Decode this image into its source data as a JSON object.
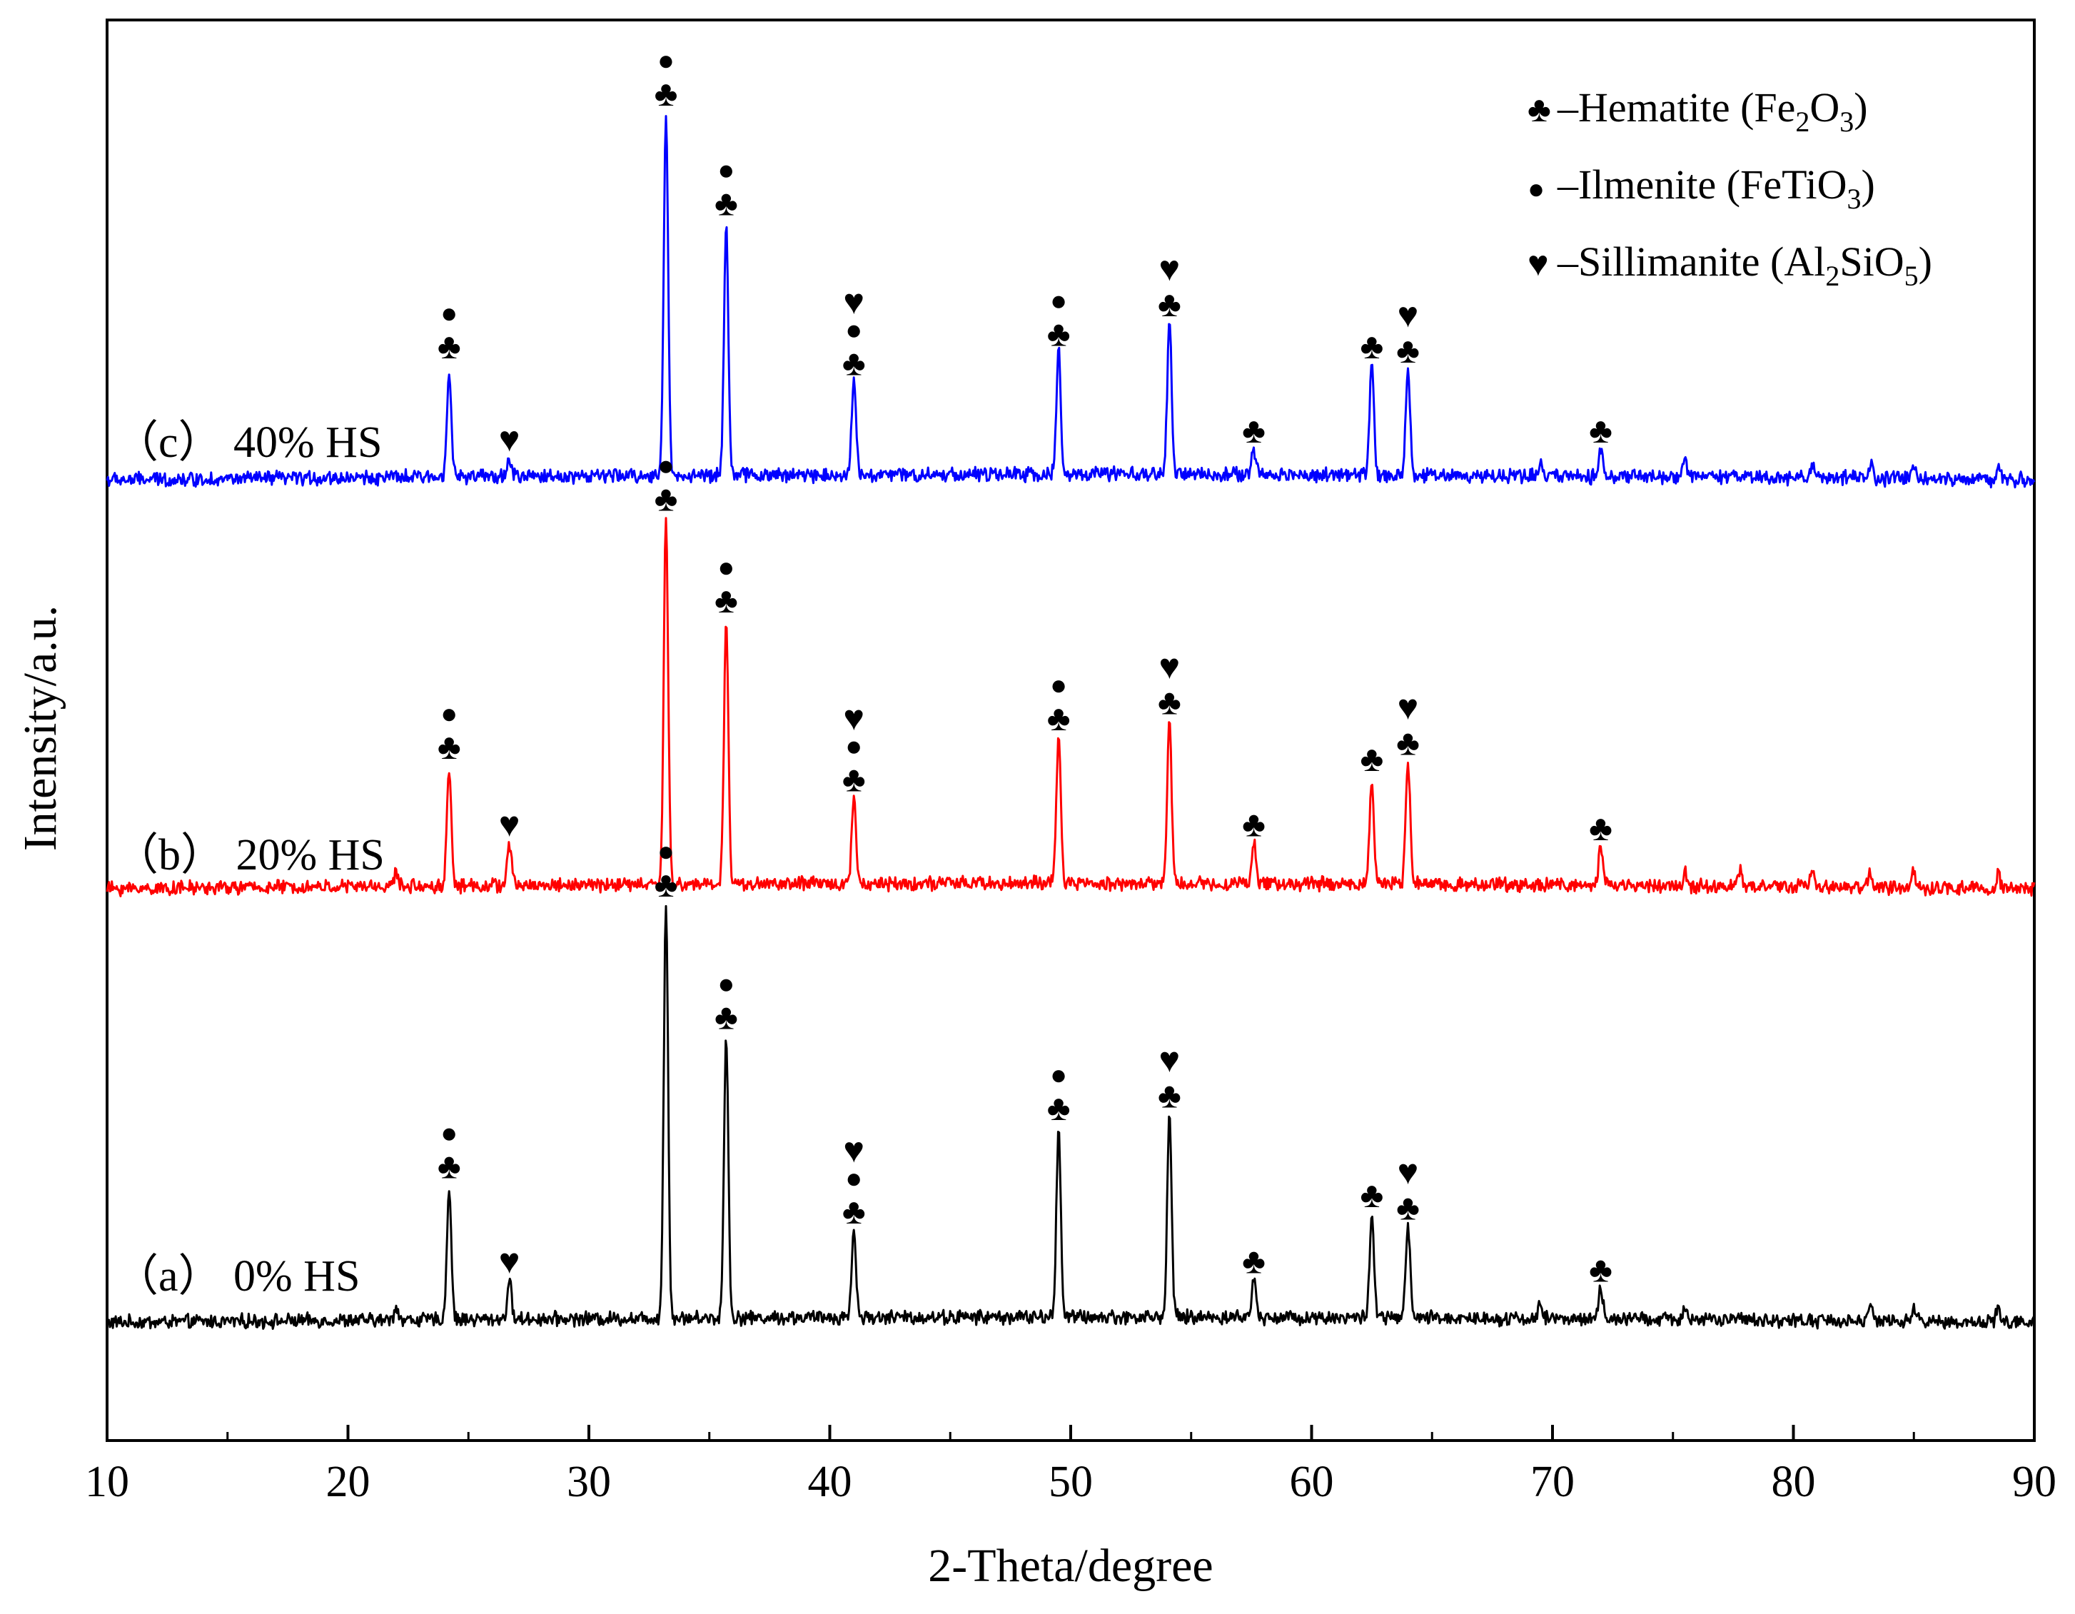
{
  "chart_data": {
    "type": "line",
    "title": "",
    "xlabel": "2-Theta/degree",
    "ylabel": "Intensity/a.u.",
    "xlim": [
      10,
      90
    ],
    "xticks": [
      "10",
      "20",
      "30",
      "40",
      "50",
      "60",
      "70",
      "80",
      "90"
    ],
    "y_ticks_shown": false,
    "legend_position": "top-right",
    "legend": [
      {
        "symbol": "club",
        "symbol_glyph": "♣",
        "text": "–Hematite (Fe",
        "sub1": "2",
        "mid": "O",
        "sub2": "3",
        "tail": ")"
      },
      {
        "symbol": "dot",
        "symbol_glyph": "●",
        "text": "–Ilmenite (FeTiO",
        "sub1": "3",
        "mid": "",
        "sub2": "",
        "tail": ")"
      },
      {
        "symbol": "heart",
        "symbol_glyph": "♥",
        "text": "–Sillimanite (Al",
        "sub1": "2",
        "mid": "SiO",
        "sub2": "5",
        "tail": ")"
      }
    ],
    "series": [
      {
        "name": "(a) 0% HS",
        "label": "（a） 0% HS",
        "color": "#000000",
        "baseline": 0.3,
        "drift": 0.06,
        "peaks": [
          {
            "x": 24.2,
            "h": 3.2,
            "markers": [
              "club",
              "dot"
            ]
          },
          {
            "x": 26.7,
            "h": 0.9,
            "markers": [
              "heart"
            ]
          },
          {
            "x": 33.2,
            "h": 10.0,
            "markers": [
              "club",
              "dot"
            ]
          },
          {
            "x": 35.7,
            "h": 6.8,
            "markers": [
              "club",
              "dot"
            ]
          },
          {
            "x": 41.0,
            "h": 2.1,
            "markers": [
              "club",
              "dot",
              "heart"
            ]
          },
          {
            "x": 49.5,
            "h": 4.6,
            "markers": [
              "club",
              "dot"
            ]
          },
          {
            "x": 54.1,
            "h": 4.9,
            "markers": [
              "club",
              "heart"
            ]
          },
          {
            "x": 57.6,
            "h": 0.9,
            "markers": [
              "club"
            ]
          },
          {
            "x": 62.5,
            "h": 2.5,
            "markers": [
              "club"
            ]
          },
          {
            "x": 64.0,
            "h": 2.2,
            "markers": [
              "club",
              "heart"
            ]
          },
          {
            "x": 72.0,
            "h": 0.7,
            "markers": [
              "club"
            ]
          }
        ],
        "minor_peaks": [
          22.0,
          69.5,
          75.5,
          83.2,
          85.0,
          88.5
        ]
      },
      {
        "name": "(b) 20% HS",
        "label": "（b） 20% HS",
        "color": "#ff0000",
        "baseline": 0.3,
        "drift": 0.06,
        "peaks": [
          {
            "x": 24.2,
            "h": 2.9,
            "markers": [
              "club",
              "dot"
            ]
          },
          {
            "x": 26.7,
            "h": 1.0,
            "markers": [
              "heart"
            ]
          },
          {
            "x": 33.2,
            "h": 9.0,
            "markers": [
              "club",
              "dot"
            ]
          },
          {
            "x": 35.7,
            "h": 6.5,
            "markers": [
              "club",
              "dot"
            ]
          },
          {
            "x": 41.0,
            "h": 2.1,
            "markers": [
              "club",
              "dot",
              "heart"
            ]
          },
          {
            "x": 49.5,
            "h": 3.6,
            "markers": [
              "club",
              "dot"
            ]
          },
          {
            "x": 54.1,
            "h": 4.0,
            "markers": [
              "club",
              "heart"
            ]
          },
          {
            "x": 57.6,
            "h": 1.0,
            "markers": [
              "club"
            ]
          },
          {
            "x": 62.5,
            "h": 2.6,
            "markers": [
              "club"
            ]
          },
          {
            "x": 64.0,
            "h": 3.0,
            "markers": [
              "club",
              "heart"
            ]
          },
          {
            "x": 72.0,
            "h": 0.9,
            "markers": [
              "club"
            ]
          }
        ],
        "minor_peaks": [
          22.0,
          75.5,
          77.8,
          80.8,
          83.2,
          85.0,
          88.5
        ]
      },
      {
        "name": "(c) 40% HS",
        "label": "（c） 40% HS",
        "color": "#0000ff",
        "baseline": 0.3,
        "drift": 0.06,
        "peaks": [
          {
            "x": 24.2,
            "h": 2.6,
            "markers": [
              "club",
              "dot"
            ]
          },
          {
            "x": 26.7,
            "h": 0.4,
            "markers": [
              "heart"
            ]
          },
          {
            "x": 33.2,
            "h": 8.6,
            "markers": [
              "club",
              "dot"
            ]
          },
          {
            "x": 35.7,
            "h": 6.0,
            "markers": [
              "club",
              "dot"
            ]
          },
          {
            "x": 41.0,
            "h": 2.2,
            "markers": [
              "club",
              "dot",
              "heart"
            ]
          },
          {
            "x": 49.5,
            "h": 2.9,
            "markers": [
              "club",
              "dot"
            ]
          },
          {
            "x": 54.1,
            "h": 3.6,
            "markers": [
              "club",
              "heart"
            ]
          },
          {
            "x": 57.6,
            "h": 0.6,
            "markers": [
              "club"
            ]
          },
          {
            "x": 62.5,
            "h": 2.6,
            "markers": [
              "club"
            ]
          },
          {
            "x": 64.0,
            "h": 2.5,
            "markers": [
              "club",
              "heart"
            ]
          },
          {
            "x": 72.0,
            "h": 0.6,
            "markers": [
              "club"
            ]
          }
        ],
        "minor_peaks": [
          69.5,
          75.5,
          80.8,
          83.2,
          85.0,
          88.5
        ]
      }
    ]
  }
}
